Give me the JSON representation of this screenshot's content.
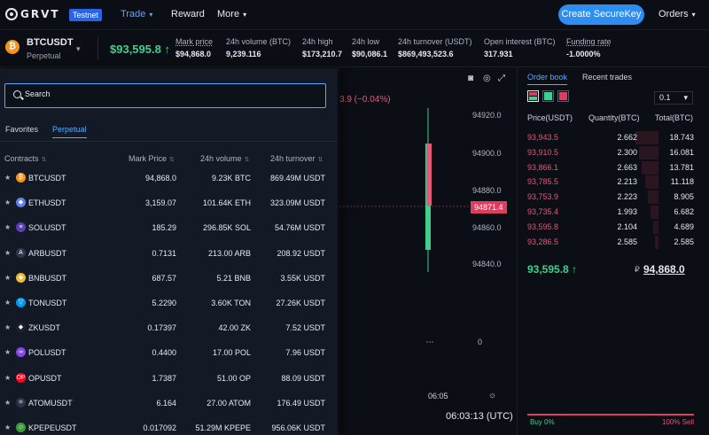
{
  "nav": {
    "logo": "GRVT",
    "badge": "Testnet",
    "items": [
      "Trade",
      "Reward",
      "More"
    ],
    "create_button": "Create SecureKey",
    "orders": "Orders"
  },
  "ticker": {
    "symbol": "BTCUSDT",
    "type": "Perpetual",
    "last_price": "$93,595.8",
    "stats": [
      {
        "label": "Mark price",
        "value": "$94,868.0"
      },
      {
        "label": "24h volume (BTC)",
        "value": "9,239.116"
      },
      {
        "label": "24h high",
        "value": "$173,210.7"
      },
      {
        "label": "24h low",
        "value": "$90,086.1"
      },
      {
        "label": "24h turnover (USDT)",
        "value": "$869,493,523.6"
      },
      {
        "label": "Open interest (BTC)",
        "value": "317.931"
      },
      {
        "label": "Funding rate",
        "value": "-1.0000%"
      }
    ]
  },
  "chart": {
    "change_text": "3.9 (−0.04%)",
    "y_ticks": [
      "94920.0",
      "94900.0",
      "94880.0",
      "94860.0",
      "94840.0",
      "0"
    ],
    "price_tag": "94871.4",
    "time_label": "06:05",
    "clock": "06:03:13 (UTC)"
  },
  "book": {
    "tabs": [
      "Order book",
      "Recent trades"
    ],
    "tick": "0.1",
    "headers": [
      "Price(USDT)",
      "Quantity(BTC)",
      "Total(BTC)"
    ],
    "asks": [
      {
        "price": "93,943.5",
        "qty": "2.662",
        "total": "18.743",
        "depth": 1.0
      },
      {
        "price": "93,910.5",
        "qty": "2.300",
        "total": "16.081",
        "depth": 0.86
      },
      {
        "price": "93,866.1",
        "qty": "2.663",
        "total": "13.781",
        "depth": 0.74
      },
      {
        "price": "93,785.5",
        "qty": "2.213",
        "total": "11.118",
        "depth": 0.59
      },
      {
        "price": "93,753.9",
        "qty": "2.223",
        "total": "8.905",
        "depth": 0.48
      },
      {
        "price": "93,735.4",
        "qty": "1.993",
        "total": "6.682",
        "depth": 0.36
      },
      {
        "price": "93,595.8",
        "qty": "2.104",
        "total": "4.689",
        "depth": 0.25
      },
      {
        "price": "93,286.5",
        "qty": "2.585",
        "total": "2.585",
        "depth": 0.14
      }
    ],
    "last_price": "93,595.8 ↑",
    "mark_price": "94,868.0",
    "buy_label": "Buy 0%",
    "sell_label": "100% Sell",
    "buy_fraction": 0
  },
  "panel": {
    "search_placeholder": "Search",
    "tabs": [
      "Favorites",
      "Perpetual"
    ],
    "columns": [
      "Contracts",
      "Mark Price",
      "24h volume",
      "24h turnover"
    ],
    "rows": [
      {
        "name": "BTCUSDT",
        "mark": "94,868.0",
        "vol": "9.23K BTC",
        "turnover": "869.49M USDT",
        "color": "#f7931a",
        "glyph": "₿"
      },
      {
        "name": "ETHUSDT",
        "mark": "3,159.07",
        "vol": "101.64K ETH",
        "turnover": "323.09M USDT",
        "color": "#627eea",
        "glyph": "◆"
      },
      {
        "name": "SOLUSDT",
        "mark": "185.29",
        "vol": "296.85K SOL",
        "turnover": "54.76M USDT",
        "color": "#5b3fb8",
        "glyph": "≡"
      },
      {
        "name": "ARBUSDT",
        "mark": "0.7131",
        "vol": "213.00 ARB",
        "turnover": "208.92 USDT",
        "color": "#2d374b",
        "glyph": "A"
      },
      {
        "name": "BNBUSDT",
        "mark": "687.57",
        "vol": "5.21 BNB",
        "turnover": "3.55K USDT",
        "color": "#f3ba2f",
        "glyph": "◆"
      },
      {
        "name": "TONUSDT",
        "mark": "5.2290",
        "vol": "3.60K TON",
        "turnover": "27.26K USDT",
        "color": "#0098ea",
        "glyph": "▽"
      },
      {
        "name": "ZKUSDT",
        "mark": "0.17397",
        "vol": "42.00 ZK",
        "turnover": "7.52 USDT",
        "color": "#1e1e2e",
        "glyph": "◆"
      },
      {
        "name": "POLUSDT",
        "mark": "0.4400",
        "vol": "17.00 POL",
        "turnover": "7.96 USDT",
        "color": "#8247e5",
        "glyph": "∞"
      },
      {
        "name": "OPUSDT",
        "mark": "1.7387",
        "vol": "51.00 OP",
        "turnover": "88.09 USDT",
        "color": "#ff0420",
        "glyph": "OP"
      },
      {
        "name": "ATOMUSDT",
        "mark": "6.164",
        "vol": "27.00 ATOM",
        "turnover": "176.49 USDT",
        "color": "#2e3148",
        "glyph": "⚛"
      },
      {
        "name": "KPEPEUSDT",
        "mark": "0.017092",
        "vol": "51.29M KPEPE",
        "turnover": "956.06K USDT",
        "color": "#3c9a3c",
        "glyph": "☺"
      }
    ]
  }
}
